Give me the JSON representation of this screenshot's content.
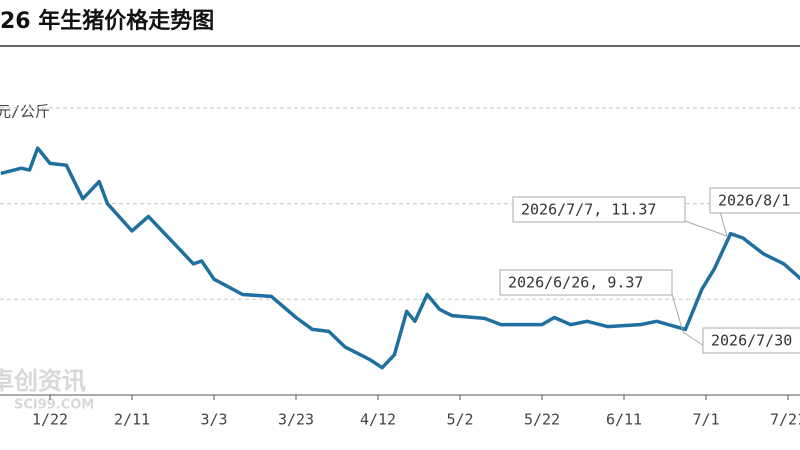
{
  "chart_data": {
    "type": "line",
    "title": "26 年生猪价格走势图",
    "y_label": "元/公斤",
    "x": [
      "1/10",
      "1/15",
      "1/17",
      "1/19",
      "1/22",
      "1/26",
      "1/30",
      "2/3",
      "2/5",
      "2/11",
      "2/15",
      "2/26",
      "2/28",
      "3/3",
      "3/10",
      "3/17",
      "3/23",
      "3/27",
      "3/31",
      "4/4",
      "4/10",
      "4/13",
      "4/16",
      "4/19",
      "4/21",
      "4/24",
      "4/27",
      "4/30",
      "5/8",
      "5/12",
      "5/22",
      "5/25",
      "5/29",
      "6/2",
      "6/7",
      "6/15",
      "6/19",
      "6/26",
      "6/30",
      "7/3",
      "7/7",
      "7/10",
      "7/15",
      "7/20",
      "7/25"
    ],
    "series": [
      {
        "color": "#1f6f9f",
        "values": [
          12.63,
          12.74,
          12.7,
          13.16,
          12.84,
          12.8,
          12.1,
          12.46,
          12.0,
          11.43,
          11.73,
          10.74,
          10.8,
          10.42,
          10.1,
          10.06,
          9.62,
          9.37,
          9.33,
          9.0,
          8.74,
          8.57,
          8.84,
          9.75,
          9.54,
          10.1,
          9.79,
          9.66,
          9.6,
          9.47,
          9.47,
          9.62,
          9.47,
          9.54,
          9.43,
          9.47,
          9.54,
          9.37,
          10.21,
          10.63,
          11.37,
          11.28,
          10.95,
          10.74,
          10.36
        ]
      }
    ],
    "ylim": [
      8,
      15
    ],
    "yticks": [
      10,
      12,
      14
    ],
    "grid": true,
    "xticks": [
      "1/22",
      "2/11",
      "3/3",
      "3/23",
      "4/12",
      "5/2",
      "5/22",
      "6/11",
      "7/1",
      "7/21"
    ],
    "annotations": [
      "2026/7/7, 11.37",
      "2026/8/1",
      "2026/6/26, 9.37",
      "2026/7/30"
    ],
    "watermark": [
      "卓创资讯",
      "SCI99.COM"
    ]
  }
}
